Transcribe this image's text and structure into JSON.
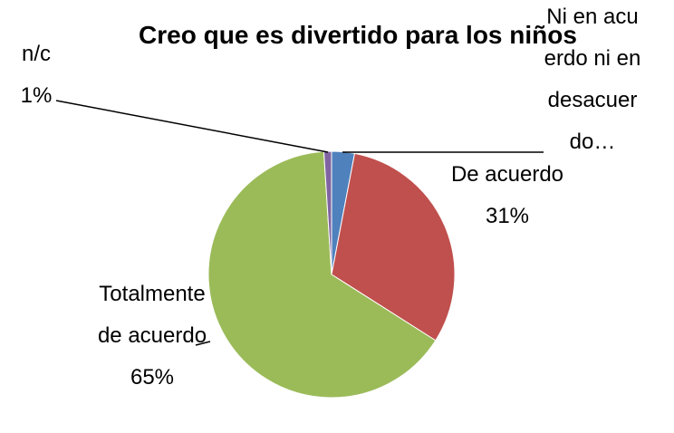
{
  "chart_data": {
    "type": "pie",
    "title": "Creo que es divertido para los niños",
    "categories": [
      "Ni en acuerdo ni en desacuerdo…",
      "De acuerdo",
      "Totalmente de acuerdo",
      "n/c"
    ],
    "values": [
      3,
      31,
      65,
      1
    ],
    "value_labels": [
      null,
      "31%",
      "65%",
      "1%"
    ],
    "colors": [
      "#4f81bd",
      "#c0504d",
      "#9bbb59",
      "#8064a2"
    ]
  }
}
